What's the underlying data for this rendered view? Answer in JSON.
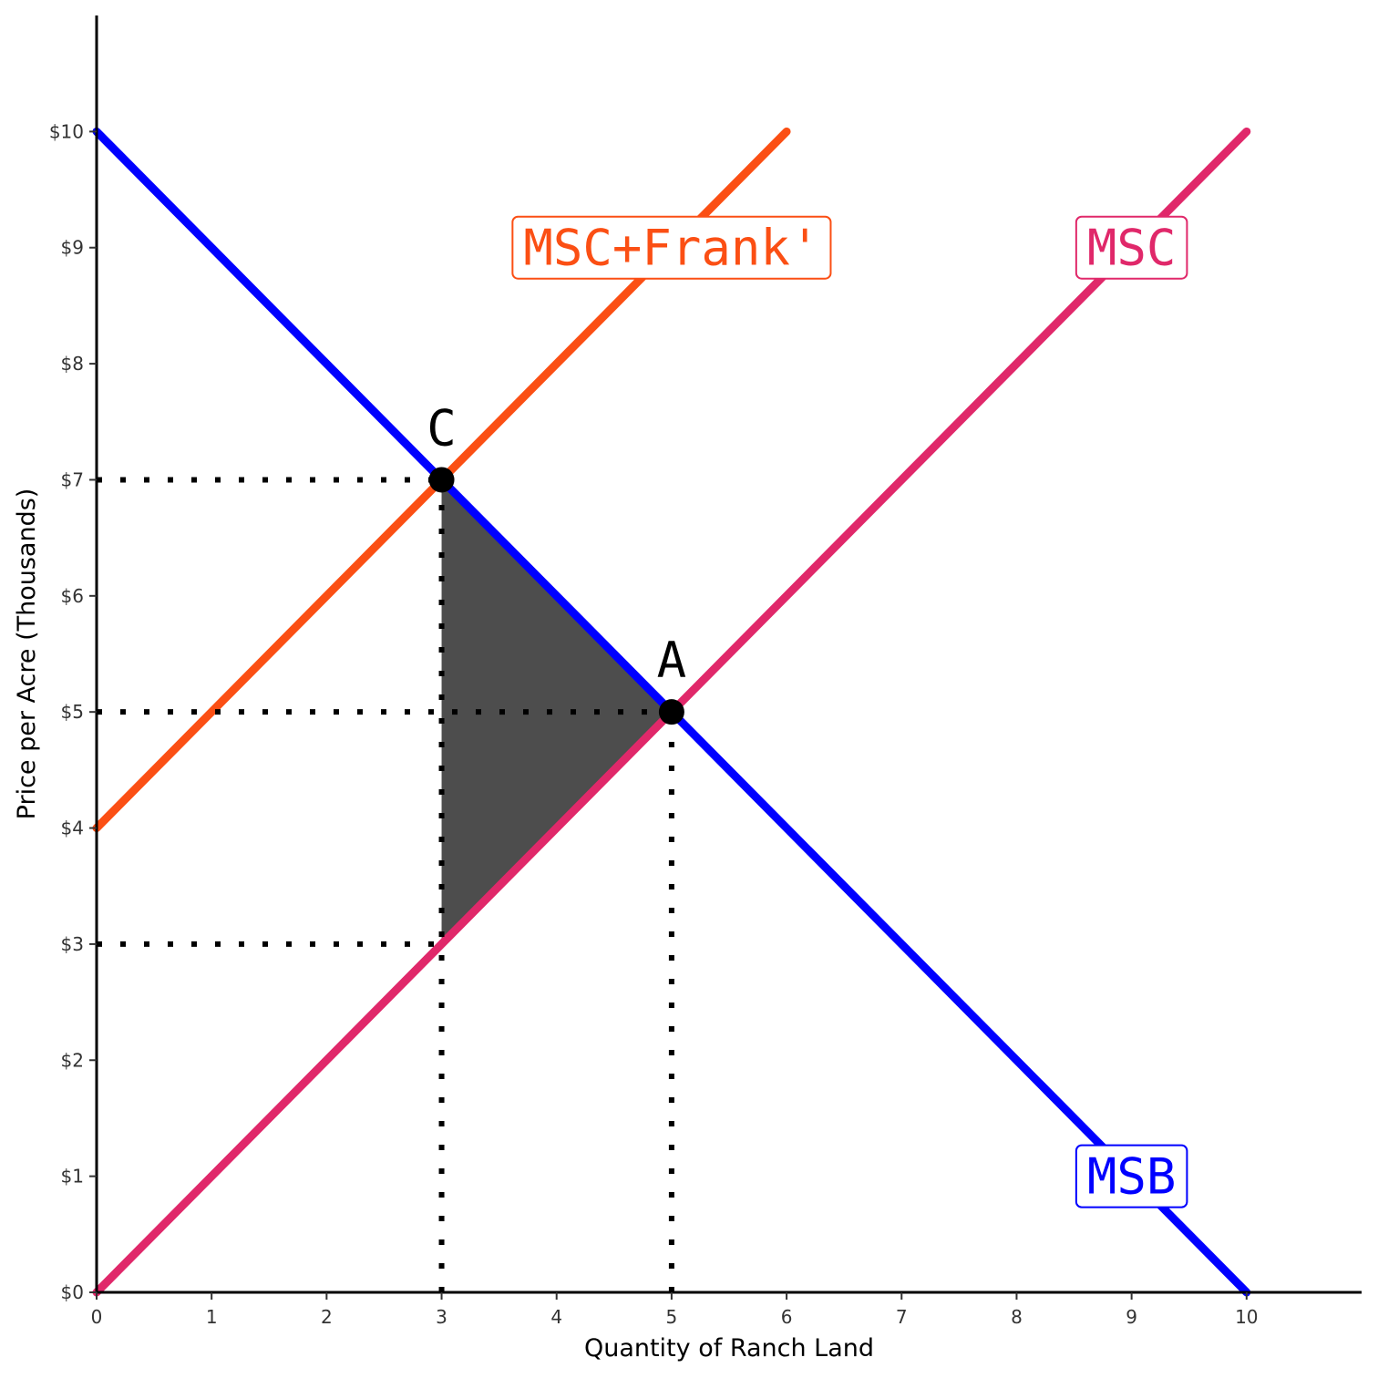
{
  "colors": {
    "msb": "#0000ff",
    "msc": "#e0286a",
    "msc_frank": "#fb4f14",
    "dwl_fill": "#4d4d4d",
    "axis": "#000000",
    "guide": "#000000"
  },
  "chart_data": {
    "type": "line",
    "xlabel": "Quantity of Ranch Land",
    "ylabel": "Price per Acre (Thousands)",
    "xlim": [
      0,
      11
    ],
    "ylim": [
      0,
      11
    ],
    "x_ticks": [
      0,
      1,
      2,
      3,
      4,
      5,
      6,
      7,
      8,
      9,
      10
    ],
    "x_tick_labels": [
      "0",
      "1",
      "2",
      "3",
      "4",
      "5",
      "6",
      "7",
      "8",
      "9",
      "10"
    ],
    "y_ticks": [
      0,
      1,
      2,
      3,
      4,
      5,
      6,
      7,
      8,
      9,
      10
    ],
    "y_tick_labels": [
      "$0",
      "$1",
      "$2",
      "$3",
      "$4",
      "$5",
      "$6",
      "$7",
      "$8",
      "$9",
      "$10"
    ],
    "grid": false,
    "series": [
      {
        "name": "MSB",
        "key": "msb",
        "x": [
          0,
          10
        ],
        "y": [
          10,
          0
        ],
        "label_at": [
          9,
          1
        ]
      },
      {
        "name": "MSC",
        "key": "msc",
        "x": [
          0,
          10
        ],
        "y": [
          0,
          10
        ],
        "label_at": [
          9,
          9
        ]
      },
      {
        "name": "MSC+Frank'",
        "key": "msc_frank",
        "x": [
          0,
          6
        ],
        "y": [
          4,
          10
        ],
        "label_at": [
          5,
          9
        ]
      }
    ],
    "points": [
      {
        "label": "C",
        "x": 3,
        "y": 7
      },
      {
        "label": "A",
        "x": 5,
        "y": 5
      }
    ],
    "guides": [
      {
        "x": [
          0,
          3
        ],
        "y": [
          7,
          7
        ]
      },
      {
        "x": [
          0,
          5
        ],
        "y": [
          5,
          5
        ]
      },
      {
        "x": [
          0,
          3
        ],
        "y": [
          3,
          3
        ]
      },
      {
        "x": [
          3,
          3
        ],
        "y": [
          0,
          7
        ]
      },
      {
        "x": [
          5,
          5
        ],
        "y": [
          0,
          5
        ]
      }
    ],
    "shaded_area": {
      "x": [
        3,
        5,
        3
      ],
      "y": [
        7,
        5,
        3
      ]
    }
  }
}
